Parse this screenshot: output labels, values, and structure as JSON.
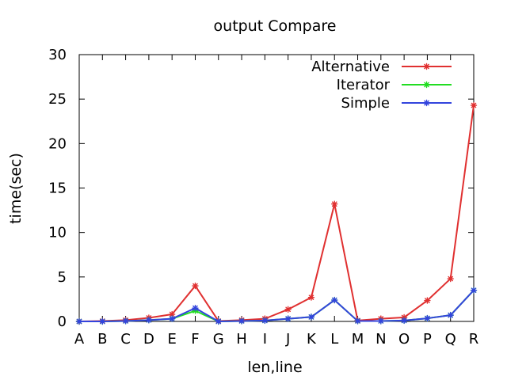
{
  "chart_data": {
    "type": "line",
    "title": "output Compare",
    "xlabel": "len,line",
    "ylabel": "time(sec)",
    "categories": [
      "A",
      "B",
      "C",
      "D",
      "E",
      "F",
      "G",
      "H",
      "I",
      "J",
      "K",
      "L",
      "M",
      "N",
      "O",
      "P",
      "Q",
      "R"
    ],
    "ylim": [
      0,
      30
    ],
    "yticks": [
      "0",
      "5",
      "10",
      "15",
      "20",
      "25",
      "30"
    ],
    "grid": false,
    "legend_position": "top-right",
    "series": [
      {
        "name": "Alternative",
        "color": "#e03030",
        "values": [
          0.0,
          0.05,
          0.15,
          0.4,
          0.8,
          4.0,
          0.05,
          0.15,
          0.3,
          1.35,
          2.7,
          13.2,
          0.1,
          0.3,
          0.45,
          2.35,
          4.8,
          24.3
        ]
      },
      {
        "name": "Iterator",
        "color": "#22dd22",
        "values": [
          0.0,
          0.0,
          0.05,
          0.15,
          0.3,
          1.2,
          0.0,
          0.05,
          0.1,
          0.3,
          0.5,
          2.4,
          0.05,
          0.05,
          0.1,
          0.35,
          0.7,
          3.5
        ]
      },
      {
        "name": "Simple",
        "color": "#3344dd",
        "values": [
          0.0,
          0.0,
          0.05,
          0.15,
          0.3,
          1.5,
          0.0,
          0.05,
          0.1,
          0.3,
          0.5,
          2.4,
          0.05,
          0.05,
          0.1,
          0.35,
          0.7,
          3.5
        ]
      }
    ]
  }
}
